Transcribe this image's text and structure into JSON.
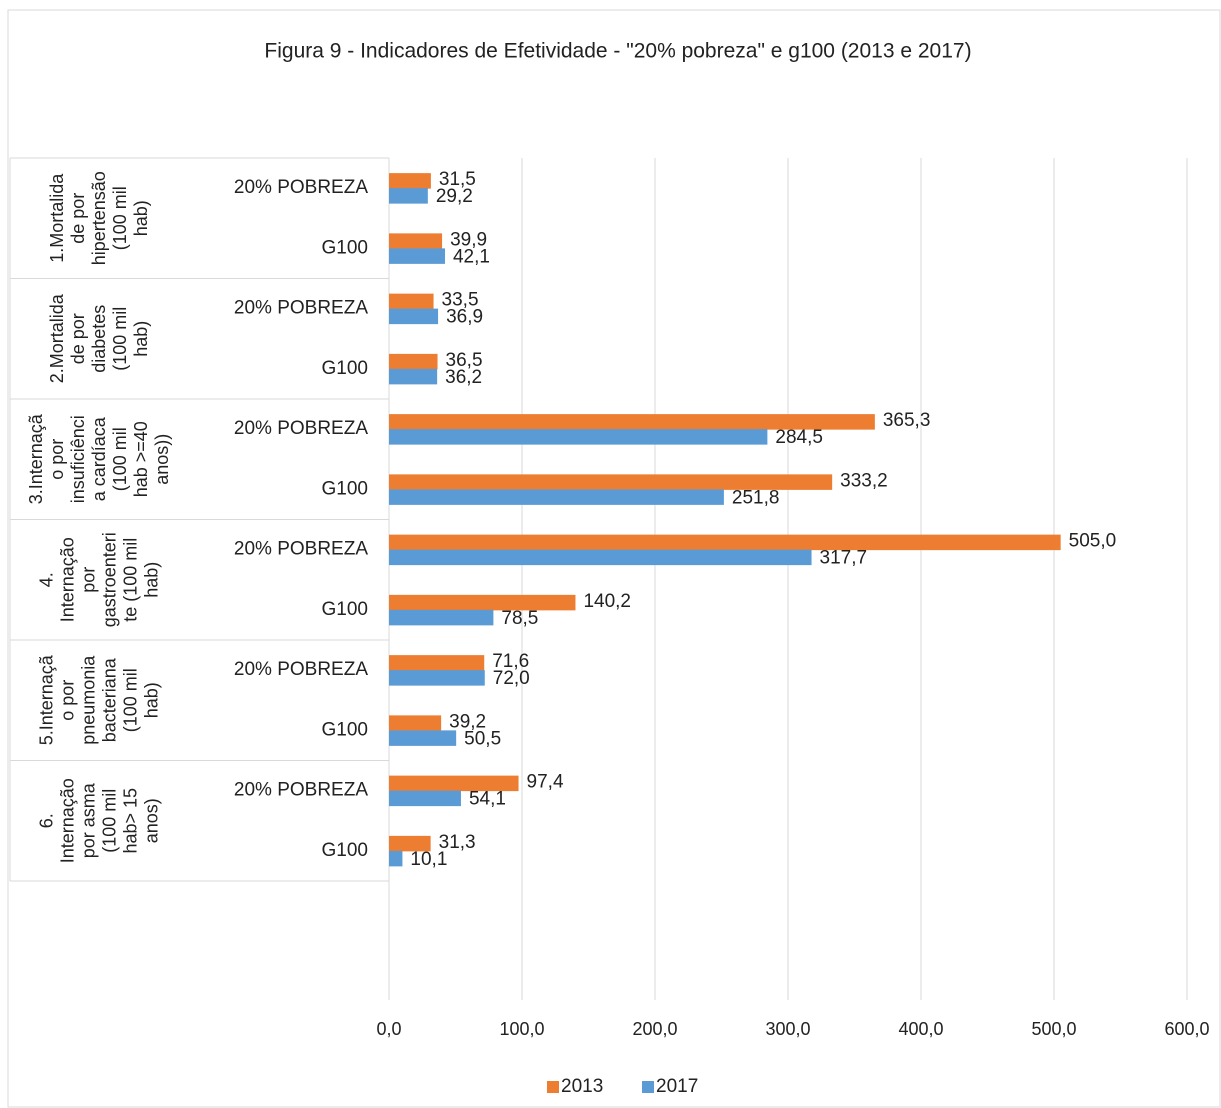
{
  "chart_data": {
    "type": "bar",
    "orientation": "horizontal",
    "title": "Figura 9 - Indicadores de Efetividade - \"20% pobreza\" e g100 (2013 e 2017)",
    "groups": [
      [
        "1.Mortalida",
        "de por",
        "hipertensão",
        "(100 mil",
        "hab)"
      ],
      [
        "2.Mortalida",
        "de por",
        "diabetes",
        "(100 mil",
        "hab)"
      ],
      [
        "3.Internaçã",
        "o por",
        "insuficiênci",
        "a cardíaca",
        "(100 mil",
        "hab >=40",
        "anos))"
      ],
      [
        "4.",
        "Internação",
        "por",
        "gastroenteri",
        "te (100 mil",
        "hab)"
      ],
      [
        "5.Internaçã",
        "o por",
        "pneumonia",
        "bacteriana",
        "(100 mil",
        "hab)"
      ],
      [
        "6.",
        "Internação",
        "por asma",
        "(100 mil",
        "hab> 15",
        "anos)"
      ]
    ],
    "categories": [
      "20% POBREZA",
      "G100",
      "20% POBREZA",
      "G100",
      "20% POBREZA",
      "G100",
      "20% POBREZA",
      "G100",
      "20% POBREZA",
      "G100",
      "20% POBREZA",
      "G100"
    ],
    "series": [
      {
        "name": "2013",
        "color": "#ed7d31",
        "values": [
          31.5,
          39.9,
          33.5,
          36.5,
          365.3,
          333.2,
          505.0,
          140.2,
          71.6,
          39.2,
          97.4,
          31.3
        ],
        "value_labels": [
          "31,5",
          "39,9",
          "33,5",
          "36,5",
          "365,3",
          "333,2",
          "505,0",
          "140,2",
          "71,6",
          "39,2",
          "97,4",
          "31,3"
        ]
      },
      {
        "name": "2017",
        "color": "#5b9bd5",
        "values": [
          29.2,
          42.1,
          36.9,
          36.2,
          284.5,
          251.8,
          317.7,
          78.5,
          72.0,
          50.5,
          54.1,
          10.1
        ],
        "value_labels": [
          "29,2",
          "42,1",
          "36,9",
          "36,2",
          "284,5",
          "251,8",
          "317,7",
          "78,5",
          "72,0",
          "50,5",
          "54,1",
          "10,1"
        ]
      }
    ],
    "xlim": [
      0,
      600
    ],
    "xticks": [
      {
        "value": 0,
        "label": "0,0"
      },
      {
        "value": 100,
        "label": "100,0"
      },
      {
        "value": 200,
        "label": "200,0"
      },
      {
        "value": 300,
        "label": "300,0"
      },
      {
        "value": 400,
        "label": "400,0"
      },
      {
        "value": 500,
        "label": "500,0"
      },
      {
        "value": 600,
        "label": "600,0"
      }
    ],
    "grid": true,
    "legend": "bottom"
  }
}
